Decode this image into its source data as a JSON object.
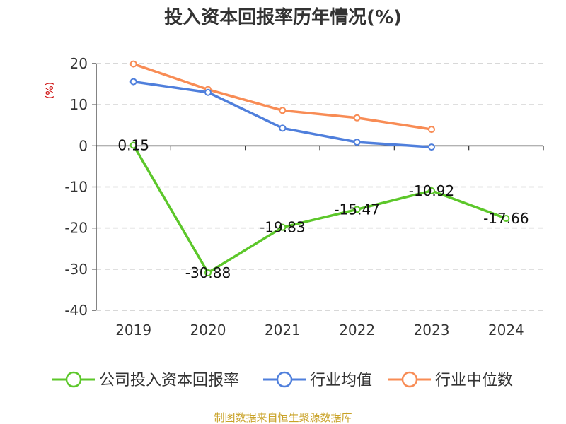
{
  "chart_data": {
    "type": "line",
    "title": "投入资本回报率历年情况(%)",
    "ylabel": "(%)",
    "ylim": [
      -40,
      20
    ],
    "yticks": [
      20,
      10,
      0,
      -10,
      -20,
      -30,
      -40
    ],
    "categories": [
      "2019",
      "2020",
      "2021",
      "2022",
      "2023",
      "2024"
    ],
    "grid": true,
    "legend_position": "bottom",
    "series": [
      {
        "name": "公司投入资本回报率",
        "color": "#5cc72a",
        "values": [
          0.15,
          -30.88,
          -19.83,
          -15.47,
          -10.92,
          -17.66
        ],
        "labels": [
          "0.15",
          "-30.88",
          "-19.83",
          "-15.47",
          "-10.92",
          "-17.66"
        ]
      },
      {
        "name": "行业均值",
        "color": "#4f7fdc",
        "values": [
          15.6,
          13.0,
          4.3,
          0.9,
          -0.3,
          null
        ]
      },
      {
        "name": "行业中位数",
        "color": "#f88c55",
        "values": [
          19.9,
          13.7,
          8.6,
          6.8,
          4.0,
          null
        ]
      }
    ]
  },
  "colors": {
    "unit": "#cc0000",
    "source": "#c9a227",
    "axis": "#333333",
    "grid": "#cccccc"
  },
  "source_text": "制图数据来自恒生聚源数据库"
}
